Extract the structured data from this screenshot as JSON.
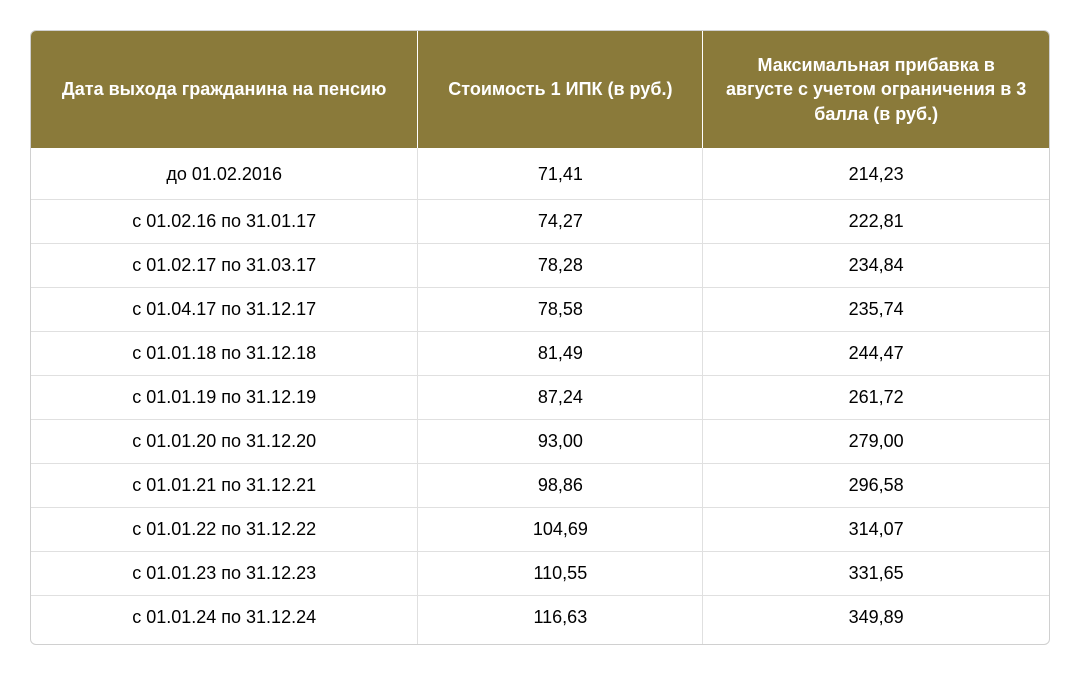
{
  "table": {
    "header_bg": "#8a7a3a",
    "header_color": "#ffffff",
    "border_color": "#e0e0e0",
    "outer_border_color": "#d0d0d0",
    "text_color": "#000000",
    "font_size_header": 18,
    "font_size_body": 18,
    "columns": [
      "Дата выхода гражданина на пенсию",
      "Стоимость 1 ИПК (в руб.)",
      "Максимальная прибавка в августе с учетом ограничения в 3 балла (в руб.)"
    ],
    "rows": [
      [
        "до 01.02.2016",
        "71,41",
        "214,23"
      ],
      [
        "с 01.02.16 по 31.01.17",
        "74,27",
        "222,81"
      ],
      [
        "с 01.02.17 по 31.03.17",
        "78,28",
        "234,84"
      ],
      [
        "с 01.04.17 по 31.12.17",
        "78,58",
        "235,74"
      ],
      [
        "с 01.01.18 по 31.12.18",
        "81,49",
        "244,47"
      ],
      [
        "с 01.01.19 по 31.12.19",
        "87,24",
        "261,72"
      ],
      [
        "с 01.01.20 по 31.12.20",
        "93,00",
        "279,00"
      ],
      [
        "с 01.01.21 по 31.12.21",
        "98,86",
        "296,58"
      ],
      [
        "с 01.01.22 по 31.12.22",
        "104,69",
        "314,07"
      ],
      [
        "с 01.01.23 по 31.12.23",
        "110,55",
        "331,65"
      ],
      [
        "с 01.01.24 по 31.12.24",
        "116,63",
        "349,89"
      ]
    ]
  }
}
